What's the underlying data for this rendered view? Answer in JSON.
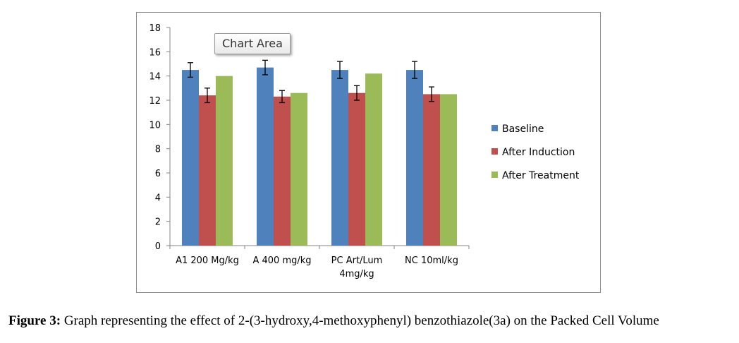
{
  "tooltip": {
    "label": "Chart Area"
  },
  "caption": {
    "prefix": "Figure 3:",
    "text": "Graph representing the effect of 2-(3-hydroxy,4-methoxyphenyl) benzothiazole(3a) on the Packed Cell Volume"
  },
  "chart_data": {
    "type": "bar",
    "categories": [
      [
        "A1 200 Mg/kg"
      ],
      [
        "A 400 mg/kg"
      ],
      [
        "PC Art/Lum",
        "4mg/kg"
      ],
      [
        "NC 10ml/kg"
      ]
    ],
    "series": [
      {
        "name": "Baseline",
        "color": "#4f81bd",
        "values": [
          14.5,
          14.7,
          14.5,
          14.5
        ],
        "errors": [
          0.6,
          0.6,
          0.7,
          0.7
        ]
      },
      {
        "name": "After Induction",
        "color": "#c0504d",
        "values": [
          12.4,
          12.3,
          12.6,
          12.5
        ],
        "errors": [
          0.6,
          0.5,
          0.6,
          0.6
        ]
      },
      {
        "name": "After Treatment",
        "color": "#9bbb59",
        "values": [
          14.0,
          12.6,
          14.2,
          12.5
        ],
        "errors": null
      }
    ],
    "ylim": [
      0,
      18
    ],
    "yticks": [
      0,
      2,
      4,
      6,
      8,
      10,
      12,
      14,
      16,
      18
    ],
    "grid": false,
    "legend_position": "right",
    "title": "",
    "xlabel": "",
    "ylabel": ""
  }
}
